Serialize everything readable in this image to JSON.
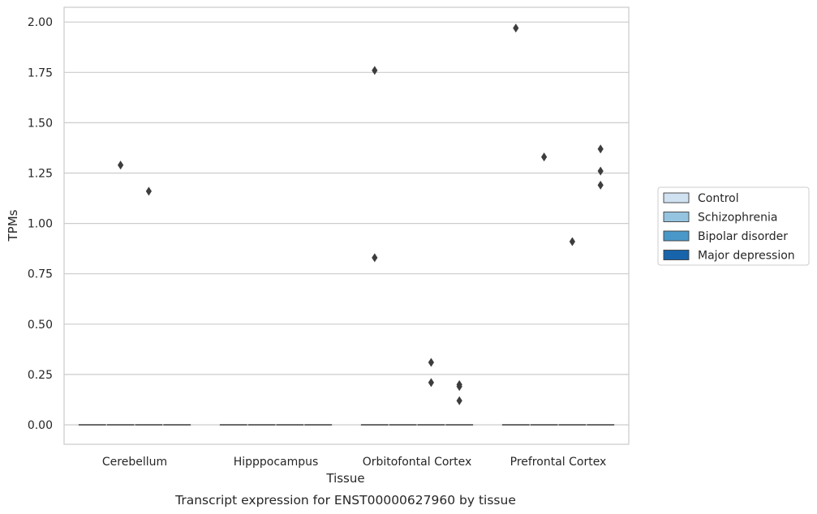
{
  "chart_data": {
    "type": "boxplot",
    "caption": "Transcript expression for ENST00000627960 by tissue",
    "xlabel": "Tissue",
    "ylabel": "TPMs",
    "ylim": [
      -0.09,
      2.07
    ],
    "yticks": [
      "0.00",
      "0.25",
      "0.50",
      "0.75",
      "1.00",
      "1.25",
      "1.50",
      "1.75",
      "2.00"
    ],
    "ytick_values": [
      0,
      0.25,
      0.5,
      0.75,
      1.0,
      1.25,
      1.5,
      1.75,
      2.0
    ],
    "categories": [
      "Cerebellum",
      "Hipppocampus",
      "Orbitofontal Cortex",
      "Prefrontal Cortex"
    ],
    "grid": true,
    "legend_position": "right",
    "series": [
      {
        "name": "Control",
        "color": "#d0e1f2",
        "medians": [
          0,
          0,
          0,
          0
        ],
        "outliers": [
          [],
          [],
          [
            1.76,
            0.83
          ],
          [
            1.97
          ]
        ]
      },
      {
        "name": "Schizophrenia",
        "color": "#94c4df",
        "medians": [
          0,
          0,
          0,
          0
        ],
        "outliers": [
          [
            1.29
          ],
          [],
          [],
          [
            1.33
          ]
        ]
      },
      {
        "name": "Bipolar disorder",
        "color": "#4a98c9",
        "medians": [
          0,
          0,
          0,
          0
        ],
        "outliers": [
          [
            1.16
          ],
          [],
          [
            0.31,
            0.21
          ],
          [
            0.91
          ]
        ]
      },
      {
        "name": "Major depression",
        "color": "#1764ab",
        "medians": [
          0,
          0,
          0,
          0
        ],
        "outliers": [
          [],
          [],
          [
            0.2,
            0.19,
            0.12
          ],
          [
            1.37,
            1.26,
            1.19
          ]
        ]
      }
    ]
  }
}
